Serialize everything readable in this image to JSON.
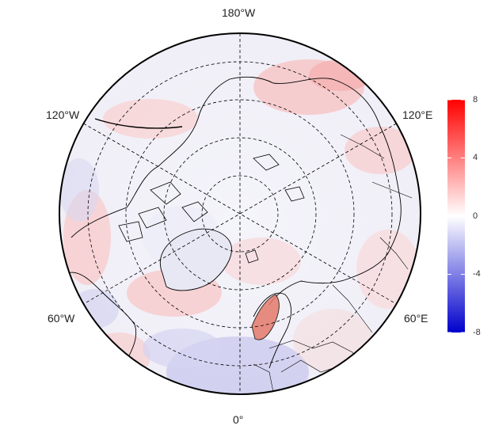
{
  "projection": "north-polar-stereographic",
  "longitude_labels": {
    "top": "180°W",
    "left_upper": "120°W",
    "right_upper": "120°E",
    "left_lower": "60°W",
    "right_lower": "60°E",
    "bottom": "0°"
  },
  "colorbar": {
    "ticks": [
      "8",
      "4",
      "0",
      "-4",
      "-8"
    ],
    "min": -8,
    "max": 8,
    "colors": {
      "high": "#ff0000",
      "mid": "#ffffff",
      "low": "#0000cc"
    }
  },
  "graticule": {
    "style": "dashed",
    "color": "#000000"
  },
  "coastline_color": "#000000"
}
